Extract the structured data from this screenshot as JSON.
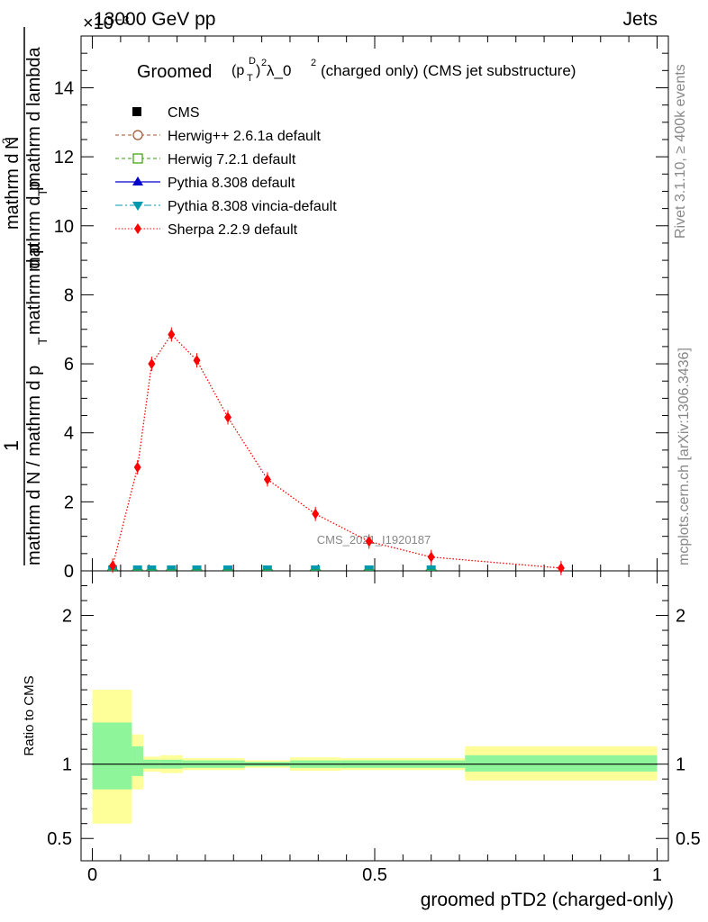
{
  "header": {
    "exponent_label": "×10⁻³",
    "process": "13000 GeV pp",
    "category": "Jets"
  },
  "side": {
    "rivet": "Rivet 3.1.10, ≥ 400k events",
    "mcplots": "mcplots.cern.ch [arXiv:1306.3436]"
  },
  "watermark": "CMS_2021_I1920187",
  "colors": {
    "sherpa": "#ff0000",
    "herwig_pp": "#a0522d",
    "herwig7": "#3a9b0e",
    "pythia": "#0000cc",
    "vincia": "#0099b0",
    "band_inner": "#8ef59a",
    "band_outer": "#ffff99"
  },
  "chart_data": [
    {
      "type": "line",
      "title": "Groomed (p_T^D)^2 λ_0^2 (charged only) (CMS jet substructure)",
      "title_parts": {
        "main": "Groomed",
        "p": "(p",
        "T": "T",
        "D": "D",
        "close": ")",
        "sq1": "2",
        "lam": " λ_0",
        "sq2": "2",
        "rest": "(charged only) (CMS jet substructure)"
      },
      "ylabel_top": "1",
      "ylabel_denominator": "mathrm d N / mathrm d p",
      "ylabel_denominator_tail": "mathrm d p",
      "ylabel_numerator": "mathrm d",
      "ylabel_numerator_tail": "N",
      "ylabel_numerator_sup": "2",
      "ylabel_numerator_line2": "mathrm d p",
      "ylabel_numerator_line2_tail": "mathrm d lambda",
      "ylabel_sub_T": "T",
      "ylabel_mid": "mathrm d p",
      "y_scale": "×10⁻³",
      "ylim": [
        0,
        15.5
      ],
      "yticks": [
        0,
        2,
        4,
        6,
        8,
        10,
        12,
        14
      ],
      "xlim": [
        -0.02,
        1.02
      ],
      "legend_position": "top-left",
      "legend": [
        {
          "label": "CMS",
          "marker": "square-filled"
        },
        {
          "label": "Herwig++ 2.6.1a default",
          "marker": "circle-open"
        },
        {
          "label": "Herwig 7.2.1 default",
          "marker": "square-open"
        },
        {
          "label": "Pythia 8.308 default",
          "marker": "triangle-up"
        },
        {
          "label": "Pythia 8.308 vincia-default",
          "marker": "triangle-down"
        },
        {
          "label": "Sherpa 2.2.9 default",
          "marker": "diamond"
        }
      ],
      "series": [
        {
          "name": "Sherpa 2.2.9 default",
          "x": [
            0.036,
            0.08,
            0.105,
            0.14,
            0.185,
            0.24,
            0.31,
            0.395,
            0.49,
            0.6,
            0.83
          ],
          "y": [
            0.15,
            3.0,
            6.0,
            6.85,
            6.1,
            4.45,
            2.65,
            1.65,
            0.85,
            0.4,
            0.08
          ]
        },
        {
          "name": "CMS",
          "x": [
            0.036,
            0.08,
            0.105,
            0.14,
            0.185,
            0.24,
            0.31,
            0.395,
            0.49,
            0.6
          ],
          "y": [
            0,
            0,
            0,
            0,
            0,
            0,
            0,
            0,
            0,
            0
          ]
        }
      ]
    },
    {
      "type": "area",
      "ylabel": "Ratio to CMS",
      "xlabel": "groomed pTD2 (charged-only)",
      "ylim": [
        0.35,
        2.3
      ],
      "xlim": [
        -0.02,
        1.02
      ],
      "yticks": [
        0.5,
        1,
        2
      ],
      "yticklabels": [
        "0.5",
        "1",
        "2"
      ],
      "xticks": [
        0,
        0.5,
        1
      ],
      "xticklabels": [
        "0",
        "0.5",
        "1"
      ],
      "bins": [
        {
          "x0": 0.0,
          "x1": 0.07,
          "inner": [
            0.83,
            1.28
          ],
          "outer": [
            0.6,
            1.5
          ]
        },
        {
          "x0": 0.07,
          "x1": 0.09,
          "inner": [
            0.92,
            1.12
          ],
          "outer": [
            0.83,
            1.2
          ]
        },
        {
          "x0": 0.09,
          "x1": 0.12,
          "inner": [
            0.97,
            1.03
          ],
          "outer": [
            0.95,
            1.05
          ]
        },
        {
          "x0": 0.12,
          "x1": 0.16,
          "inner": [
            0.97,
            1.03
          ],
          "outer": [
            0.94,
            1.06
          ]
        },
        {
          "x0": 0.16,
          "x1": 0.27,
          "inner": [
            0.975,
            1.025
          ],
          "outer": [
            0.96,
            1.04
          ]
        },
        {
          "x0": 0.27,
          "x1": 0.35,
          "inner": [
            0.985,
            1.015
          ],
          "outer": [
            0.975,
            1.025
          ]
        },
        {
          "x0": 0.35,
          "x1": 0.44,
          "inner": [
            0.975,
            1.025
          ],
          "outer": [
            0.955,
            1.045
          ]
        },
        {
          "x0": 0.44,
          "x1": 0.66,
          "inner": [
            0.975,
            1.025
          ],
          "outer": [
            0.96,
            1.04
          ]
        },
        {
          "x0": 0.66,
          "x1": 1.0,
          "inner": [
            0.95,
            1.06
          ],
          "outer": [
            0.89,
            1.12
          ]
        }
      ]
    }
  ]
}
